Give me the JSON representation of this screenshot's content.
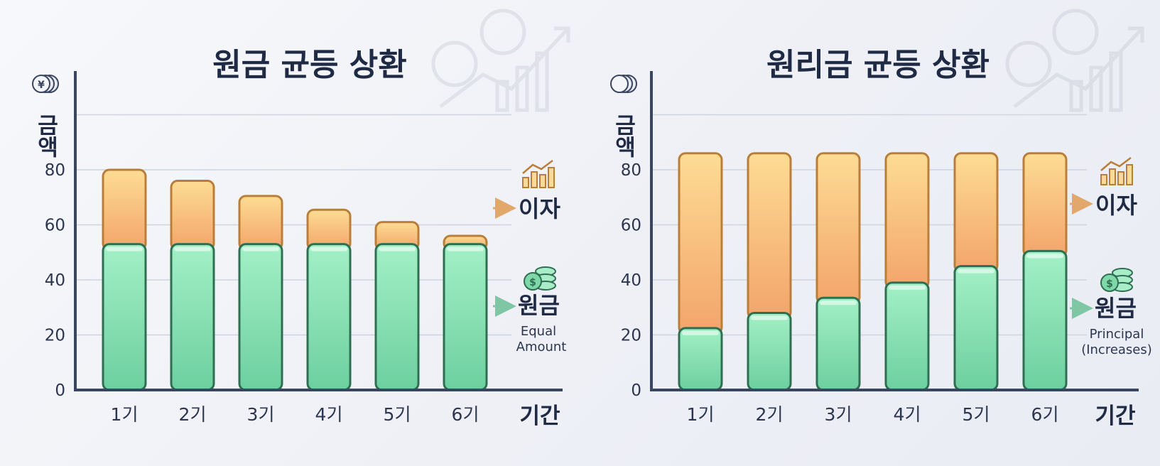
{
  "colors": {
    "principal_top": "#a3f0c6",
    "principal_bottom": "#6dcf9f",
    "principal_stroke": "#2f6e52",
    "interest_top": "#fddc94",
    "interest_bottom": "#f3a46b",
    "interest_stroke": "#b97f3a",
    "axis": "#3a4560",
    "grid": "#cfd4de",
    "arrow_interest": "#e2a76a",
    "arrow_principal": "#7fc7a4"
  },
  "icons": {
    "axis_icon": "coin-stack-icon",
    "interest_icon": "growth-chart-icon",
    "principal_icon": "money-stack-icon",
    "watermark": "finance-growth-icon"
  },
  "chart_data": [
    {
      "type": "bar",
      "stacked": true,
      "title": "원금 균등 상환",
      "ylabel": "금액",
      "xlabel": "기간",
      "categories": [
        "1기",
        "2기",
        "3기",
        "4기",
        "5기",
        "6기"
      ],
      "ylim": [
        0,
        100
      ],
      "yticks": [
        "0",
        "20",
        "40",
        "60",
        "80"
      ],
      "grid": true,
      "series": [
        {
          "name": "원금",
          "key": "principal",
          "values": [
            53,
            53,
            53,
            53,
            53,
            53
          ]
        },
        {
          "name": "이자",
          "key": "interest",
          "values": [
            27,
            23,
            17.5,
            12.5,
            8,
            3
          ]
        }
      ],
      "legend": {
        "interest_label": "이자",
        "principal_label": "원금",
        "principal_note_1": "Equal",
        "principal_note_2": "Amount"
      }
    },
    {
      "type": "bar",
      "stacked": true,
      "title": "원리금 균등 상환",
      "ylabel": "금액",
      "xlabel": "기간",
      "categories": [
        "1기",
        "2기",
        "3기",
        "4기",
        "5기",
        "6기"
      ],
      "ylim": [
        0,
        100
      ],
      "yticks": [
        "0",
        "20",
        "40",
        "60",
        "80"
      ],
      "grid": true,
      "series": [
        {
          "name": "원금",
          "key": "principal",
          "values": [
            22.5,
            28,
            33.5,
            39,
            45,
            50.5
          ]
        },
        {
          "name": "이자",
          "key": "interest",
          "values": [
            63.5,
            58,
            52.5,
            47,
            41,
            35.5
          ]
        }
      ],
      "legend": {
        "interest_label": "이자",
        "principal_label": "원금",
        "principal_note_1": "Principal",
        "principal_note_2": "(Increases)"
      }
    }
  ]
}
